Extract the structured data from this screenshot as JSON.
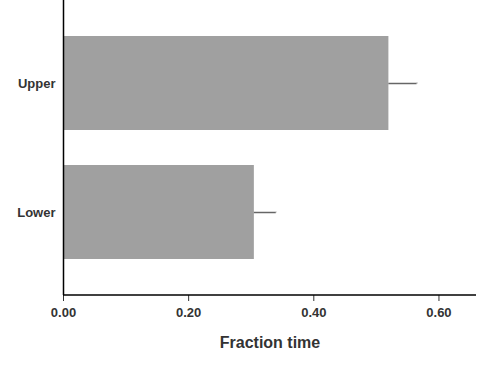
{
  "chart_data": {
    "type": "bar",
    "orientation": "horizontal",
    "categories": [
      "Upper",
      "Lower"
    ],
    "values": [
      0.52,
      0.305
    ],
    "errors": [
      0.045,
      0.035
    ],
    "color": "#a0a0a0",
    "xlabel": "Fraction time",
    "xlim": [
      0,
      0.66
    ],
    "xticks": [
      {
        "value": 0,
        "label": "0.00"
      },
      {
        "value": 0.2,
        "label": "0.20"
      },
      {
        "value": 0.4,
        "label": "0.40"
      },
      {
        "value": 0.6,
        "label": "0.60"
      }
    ],
    "grid": false
  }
}
